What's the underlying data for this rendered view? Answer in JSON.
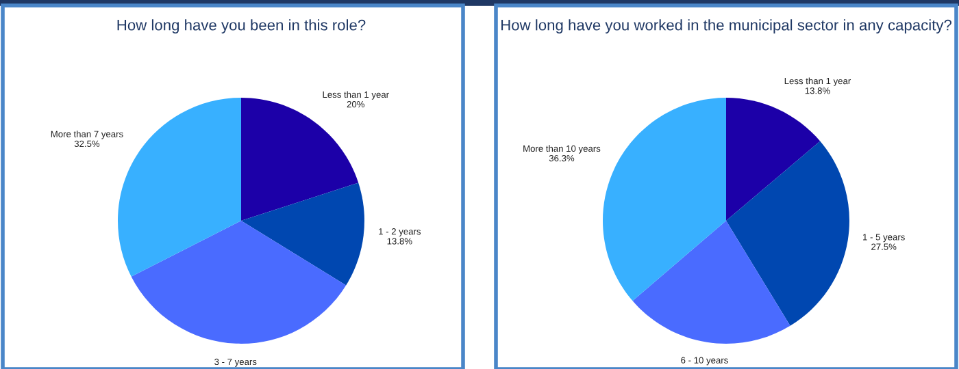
{
  "chart_data": [
    {
      "type": "pie",
      "title": "How long have you been in this role?",
      "categories": [
        "Less than 1 year",
        "1 - 2 years",
        "3 - 7 years",
        "More than 7 years"
      ],
      "values": [
        20,
        13.8,
        33.7,
        32.5
      ],
      "value_labels": [
        "20%",
        "13.8%",
        null,
        "32.5%"
      ],
      "colors": [
        "#1c00a8",
        "#0047b0",
        "#4a6bff",
        "#38b0ff"
      ]
    },
    {
      "type": "pie",
      "title": "How long have you worked in the municipal sector in any capacity?",
      "categories": [
        "Less than 1 year",
        "1 - 5 years",
        "6 - 10 years",
        "More than 10 years"
      ],
      "values": [
        13.8,
        27.5,
        22.4,
        36.3
      ],
      "value_labels": [
        "13.8%",
        "27.5%",
        null,
        "36.3%"
      ],
      "colors": [
        "#1c00a8",
        "#0047b0",
        "#4a6bff",
        "#38b0ff"
      ]
    }
  ]
}
